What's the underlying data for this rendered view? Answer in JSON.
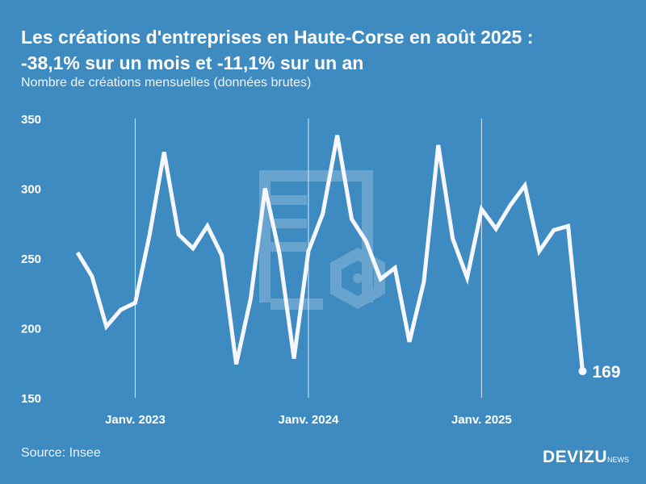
{
  "title_line1": "Les créations d'entreprises en Haute-Corse en août 2025 :",
  "title_line2": "-38,1% sur un mois et -11,1% sur un an",
  "subtitle": "Nombre de créations mensuelles (données brutes)",
  "source": "Source: Insee",
  "logo": {
    "main": "DEVIZU",
    "suffix": "NEWS"
  },
  "colors": {
    "background": "#3e8bc1",
    "line": "#f7f8ff"
  },
  "chart_data": {
    "type": "line",
    "title": "Les créations d'entreprises en Haute-Corse en août 2025 : -38,1% sur un mois et -11,1% sur un an",
    "ylabel": "Nombre de créations mensuelles (données brutes)",
    "ylim": [
      150,
      350
    ],
    "yticks": [
      350,
      300,
      250,
      200,
      150
    ],
    "x_start": "2022-09",
    "x_end": "2025-08",
    "xticks": [
      {
        "label": "Janv. 2023",
        "index": 4
      },
      {
        "label": "Janv. 2024",
        "index": 16
      },
      {
        "label": "Janv. 2025",
        "index": 28
      }
    ],
    "values": [
      254,
      237,
      201,
      213,
      218,
      267,
      326,
      267,
      257,
      273,
      252,
      174,
      221,
      300,
      253,
      178,
      255,
      282,
      338,
      278,
      262,
      235,
      243,
      190,
      233,
      331,
      264,
      236,
      285,
      271,
      288,
      302,
      255,
      270,
      273,
      169
    ],
    "last_label": "169"
  }
}
